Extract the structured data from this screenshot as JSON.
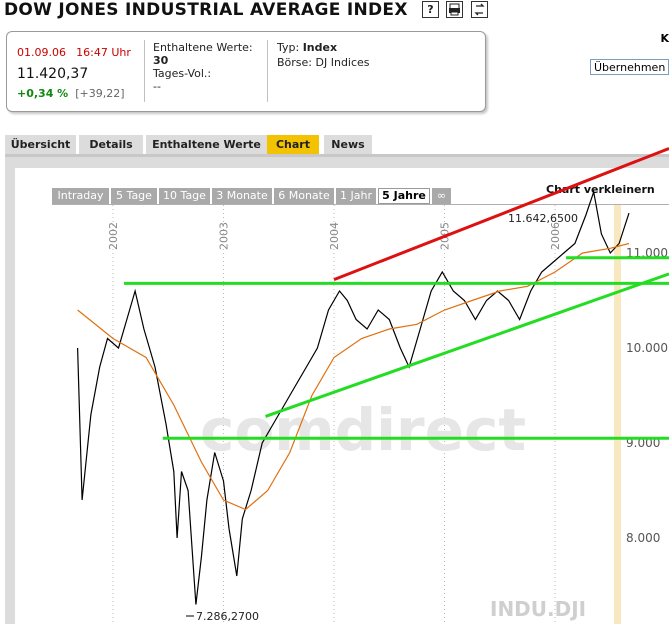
{
  "header": {
    "title": "DOW JONES INDUSTRIAL AVERAGE INDEX",
    "icons": [
      "help-icon",
      "print-icon",
      "refresh-icon"
    ],
    "right_fragment": "K"
  },
  "quote": {
    "date": "01.09.06",
    "time": "16:47 Uhr",
    "price": "11.420,37",
    "change_pct": "+0,34 %",
    "change_abs": "[+39,22]",
    "enthaltene_label": "Enthaltene Werte:",
    "enthaltene_value": "30",
    "tagesvol_label": "Tages-Vol.:",
    "tagesvol_value": "--",
    "typ_label": "Typ:",
    "typ_value": "Index",
    "boerse_label": "Börse:",
    "boerse_value": "DJ Indices",
    "uebernehmen": "Übernehmen"
  },
  "tabs": [
    {
      "label": "Übersicht",
      "active": false
    },
    {
      "label": "Details",
      "active": false
    },
    {
      "label": "Enthaltene Werte",
      "active": false
    },
    {
      "label": "Chart",
      "active": true
    },
    {
      "label": "News",
      "active": false
    }
  ],
  "chart": {
    "ranges": [
      {
        "label": "Intraday",
        "active": false
      },
      {
        "label": "5 Tage",
        "active": false
      },
      {
        "label": "10 Tage",
        "active": false
      },
      {
        "label": "3 Monate",
        "active": false
      },
      {
        "label": "6 Monate",
        "active": false
      },
      {
        "label": "1 Jahr",
        "active": false
      },
      {
        "label": "5 Jahre",
        "active": true
      },
      {
        "label": "∞",
        "active": false
      }
    ],
    "shrink_label": "Chart verkleinern",
    "watermark": "comdirect",
    "symbol": "INDU.DJI",
    "high_label": "11.642,6500",
    "low_label": "7.286,2700",
    "colors": {
      "price": "#000000",
      "ma": "#e07010",
      "support": "#22dd22",
      "resistance": "#dd1111",
      "today": "#f3d38a"
    }
  },
  "chart_data": {
    "type": "line",
    "title": "",
    "x_ticks": [
      "2002",
      "2003",
      "2004",
      "2005",
      "2006"
    ],
    "y_ticks": [
      "8.000",
      "9.000",
      "10.000",
      "11.000"
    ],
    "ylim": [
      7100,
      12000
    ],
    "series": [
      {
        "values": [
          [
            2001.68,
            10000
          ],
          [
            2001.72,
            8400
          ],
          [
            2001.8,
            9300
          ],
          [
            2001.88,
            9800
          ],
          [
            2001.95,
            10100
          ],
          [
            2002.05,
            10000
          ],
          [
            2002.15,
            10400
          ],
          [
            2002.2,
            10600
          ],
          [
            2002.28,
            10200
          ],
          [
            2002.38,
            9800
          ],
          [
            2002.48,
            9200
          ],
          [
            2002.55,
            8700
          ],
          [
            2002.58,
            8000
          ],
          [
            2002.62,
            8700
          ],
          [
            2002.68,
            8500
          ],
          [
            2002.75,
            7300
          ],
          [
            2002.8,
            7800
          ],
          [
            2002.85,
            8400
          ],
          [
            2002.92,
            8900
          ],
          [
            2003.0,
            8600
          ],
          [
            2003.05,
            8100
          ],
          [
            2003.12,
            7600
          ],
          [
            2003.17,
            8200
          ],
          [
            2003.25,
            8500
          ],
          [
            2003.35,
            9000
          ],
          [
            2003.45,
            9200
          ],
          [
            2003.55,
            9400
          ],
          [
            2003.65,
            9600
          ],
          [
            2003.75,
            9800
          ],
          [
            2003.85,
            10000
          ],
          [
            2003.95,
            10400
          ],
          [
            2004.05,
            10600
          ],
          [
            2004.12,
            10500
          ],
          [
            2004.2,
            10300
          ],
          [
            2004.3,
            10200
          ],
          [
            2004.4,
            10400
          ],
          [
            2004.5,
            10300
          ],
          [
            2004.6,
            10000
          ],
          [
            2004.68,
            9800
          ],
          [
            2004.78,
            10200
          ],
          [
            2004.88,
            10600
          ],
          [
            2004.98,
            10800
          ],
          [
            2005.08,
            10600
          ],
          [
            2005.18,
            10500
          ],
          [
            2005.28,
            10300
          ],
          [
            2005.38,
            10500
          ],
          [
            2005.48,
            10600
          ],
          [
            2005.58,
            10500
          ],
          [
            2005.68,
            10300
          ],
          [
            2005.78,
            10600
          ],
          [
            2005.88,
            10800
          ],
          [
            2005.98,
            10900
          ],
          [
            2006.08,
            11000
          ],
          [
            2006.18,
            11100
          ],
          [
            2006.28,
            11400
          ],
          [
            2006.35,
            11642
          ],
          [
            2006.42,
            11200
          ],
          [
            2006.5,
            11000
          ],
          [
            2006.58,
            11100
          ],
          [
            2006.67,
            11420
          ]
        ]
      },
      {
        "values": [
          [
            2001.68,
            10400
          ],
          [
            2002.0,
            10100
          ],
          [
            2002.3,
            9900
          ],
          [
            2002.55,
            9400
          ],
          [
            2002.8,
            8800
          ],
          [
            2003.0,
            8400
          ],
          [
            2003.2,
            8300
          ],
          [
            2003.4,
            8500
          ],
          [
            2003.6,
            8900
          ],
          [
            2003.8,
            9500
          ],
          [
            2004.0,
            9900
          ],
          [
            2004.25,
            10100
          ],
          [
            2004.5,
            10200
          ],
          [
            2004.75,
            10250
          ],
          [
            2005.0,
            10400
          ],
          [
            2005.25,
            10500
          ],
          [
            2005.5,
            10600
          ],
          [
            2005.75,
            10650
          ],
          [
            2006.0,
            10800
          ],
          [
            2006.25,
            11000
          ],
          [
            2006.5,
            11050
          ],
          [
            2006.67,
            11100
          ]
        ]
      }
    ]
  }
}
